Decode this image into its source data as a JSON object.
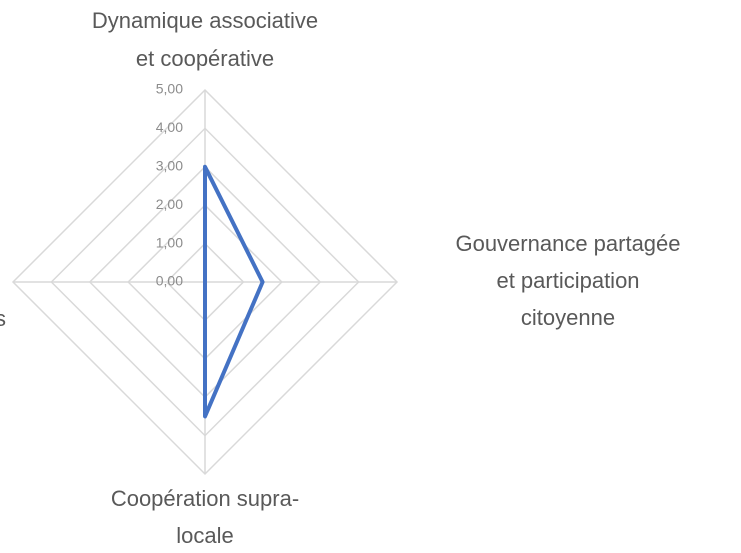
{
  "chart_data": {
    "type": "radar",
    "categories": [
      "Dynamique associative\net coopérative",
      "Gouvernance partagée\net participation\ncitoyenne",
      "Coopération supra-\nlocale",
      "s"
    ],
    "series": [
      {
        "color": "#4472c4",
        "values": [
          3,
          1.5,
          3.5,
          0
        ]
      }
    ],
    "ylim": [
      0,
      5
    ],
    "yticks": [
      {
        "value": 0,
        "label": "0,00"
      },
      {
        "value": 1,
        "label": "1,00"
      },
      {
        "value": 2,
        "label": "2,00"
      },
      {
        "value": 3,
        "label": "3,00"
      },
      {
        "value": 4,
        "label": "4,00"
      },
      {
        "value": 5,
        "label": "5,00"
      }
    ],
    "grid": true
  }
}
